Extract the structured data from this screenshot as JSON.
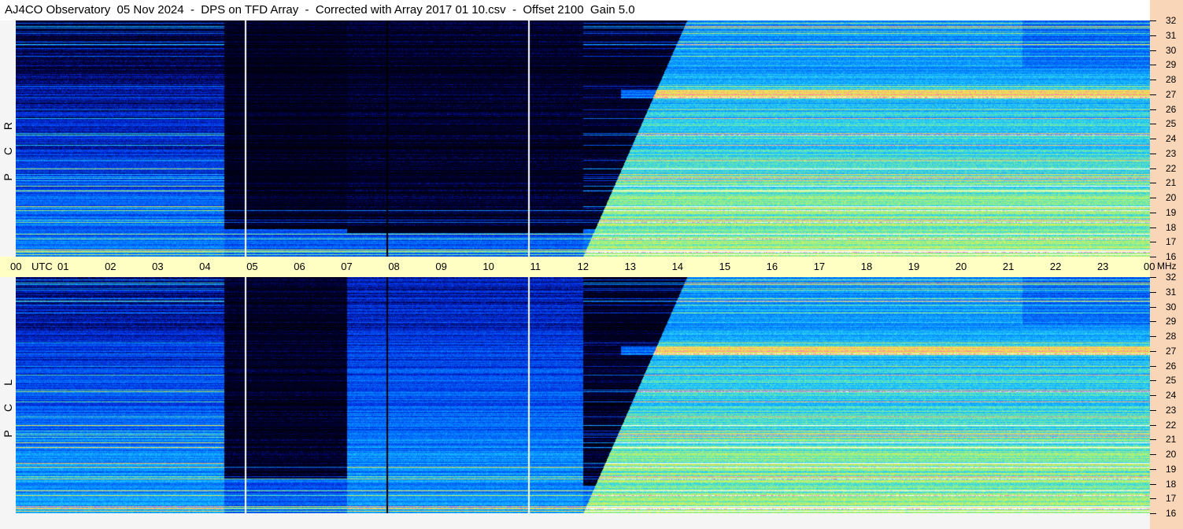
{
  "header": {
    "title": "AJ4CO Observatory  05 Nov 2024  -  DPS on TFD Array  -  Corrected with Array 2017 01 10.csv  -  Offset 2100  Gain 5.0"
  },
  "panels": [
    {
      "letters": [
        "R",
        "C",
        "P"
      ]
    },
    {
      "letters": [
        "L",
        "C",
        "P"
      ]
    }
  ],
  "chart_data": {
    "type": "heatmap",
    "title": "AJ4CO Observatory  05 Nov 2024  -  DPS on TFD Array  -  Corrected with Array 2017 01 10.csv  -  Offset 2100  Gain 5.0",
    "x_ticks": [
      "00",
      "01",
      "02",
      "03",
      "04",
      "05",
      "06",
      "07",
      "08",
      "09",
      "10",
      "11",
      "12",
      "13",
      "14",
      "15",
      "16",
      "17",
      "18",
      "19",
      "20",
      "21",
      "22",
      "23",
      "00"
    ],
    "x_unit": "UTC",
    "y_ticks": [
      32,
      31,
      30,
      29,
      28,
      27,
      26,
      25,
      24,
      23,
      22,
      21,
      20,
      19,
      18,
      17,
      16
    ],
    "y_unit": "MHz",
    "xlim": [
      0,
      24
    ],
    "ylim": [
      16,
      32
    ],
    "series": [
      {
        "name": "RCP"
      },
      {
        "name": "LCP"
      }
    ],
    "colors": {
      "low": "#000010",
      "mid_low": "#0040ff",
      "mid": "#20c8ff",
      "mid_high": "#a8f080",
      "high": "#ffe060",
      "very_high": "#ff60c0",
      "saturated": "#ffffff"
    }
  }
}
